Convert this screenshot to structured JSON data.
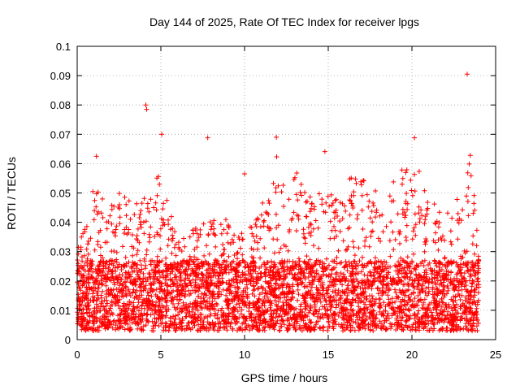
{
  "chart_data": {
    "type": "scatter",
    "title": "Day 144 of 2025, Rate Of TEC Index for receiver lpgs",
    "xlabel": "GPS time / hours",
    "ylabel": "ROTI / TECUs",
    "xlim": [
      0,
      25
    ],
    "ylim": [
      0,
      0.1
    ],
    "xticks": [
      0,
      5,
      10,
      15,
      20,
      25
    ],
    "xtick_labels": [
      "0",
      "5",
      "10",
      "15",
      "20",
      "25"
    ],
    "yticks": [
      0,
      0.01,
      0.02,
      0.03,
      0.04,
      0.05,
      0.06,
      0.07,
      0.08,
      0.09,
      0.1
    ],
    "ytick_labels": [
      "0",
      "0.01",
      "0.02",
      "0.03",
      "0.04",
      "0.05",
      "0.06",
      "0.07",
      "0.08",
      "0.09",
      "0.1"
    ],
    "grid": true,
    "marker": "+",
    "color": "#ff0000",
    "data_x_range": [
      0,
      24
    ],
    "notable_points": [
      {
        "x": 1.15,
        "y": 0.0625
      },
      {
        "x": 4.1,
        "y": 0.08
      },
      {
        "x": 4.15,
        "y": 0.0785
      },
      {
        "x": 5.05,
        "y": 0.07
      },
      {
        "x": 7.8,
        "y": 0.0688
      },
      {
        "x": 10.0,
        "y": 0.0565
      },
      {
        "x": 11.9,
        "y": 0.069
      },
      {
        "x": 14.8,
        "y": 0.0641
      },
      {
        "x": 20.15,
        "y": 0.0688
      },
      {
        "x": 23.3,
        "y": 0.0905
      }
    ],
    "envelope": [
      {
        "x": 0,
        "y": 0.035
      },
      {
        "x": 0.5,
        "y": 0.038
      },
      {
        "x": 1.0,
        "y": 0.055
      },
      {
        "x": 1.5,
        "y": 0.048
      },
      {
        "x": 2.0,
        "y": 0.046
      },
      {
        "x": 2.5,
        "y": 0.054
      },
      {
        "x": 3.0,
        "y": 0.05
      },
      {
        "x": 3.5,
        "y": 0.047
      },
      {
        "x": 4.0,
        "y": 0.05
      },
      {
        "x": 4.5,
        "y": 0.048
      },
      {
        "x": 5.0,
        "y": 0.065
      },
      {
        "x": 5.5,
        "y": 0.046
      },
      {
        "x": 6.0,
        "y": 0.033
      },
      {
        "x": 6.5,
        "y": 0.036
      },
      {
        "x": 7.0,
        "y": 0.038
      },
      {
        "x": 7.5,
        "y": 0.04
      },
      {
        "x": 8.0,
        "y": 0.043
      },
      {
        "x": 8.5,
        "y": 0.039
      },
      {
        "x": 9.0,
        "y": 0.043
      },
      {
        "x": 9.5,
        "y": 0.034
      },
      {
        "x": 10.0,
        "y": 0.04
      },
      {
        "x": 10.5,
        "y": 0.04
      },
      {
        "x": 11.0,
        "y": 0.05
      },
      {
        "x": 11.5,
        "y": 0.05
      },
      {
        "x": 12.0,
        "y": 0.065
      },
      {
        "x": 12.5,
        "y": 0.05
      },
      {
        "x": 13.0,
        "y": 0.058
      },
      {
        "x": 13.5,
        "y": 0.055
      },
      {
        "x": 14.0,
        "y": 0.05
      },
      {
        "x": 14.5,
        "y": 0.05
      },
      {
        "x": 15.0,
        "y": 0.052
      },
      {
        "x": 15.5,
        "y": 0.048
      },
      {
        "x": 16.0,
        "y": 0.055
      },
      {
        "x": 16.5,
        "y": 0.058
      },
      {
        "x": 17.0,
        "y": 0.055
      },
      {
        "x": 17.5,
        "y": 0.052
      },
      {
        "x": 18.0,
        "y": 0.05
      },
      {
        "x": 18.5,
        "y": 0.055
      },
      {
        "x": 19.0,
        "y": 0.06
      },
      {
        "x": 19.5,
        "y": 0.058
      },
      {
        "x": 20.0,
        "y": 0.06
      },
      {
        "x": 20.5,
        "y": 0.058
      },
      {
        "x": 21.0,
        "y": 0.05
      },
      {
        "x": 21.5,
        "y": 0.045
      },
      {
        "x": 22.0,
        "y": 0.042
      },
      {
        "x": 22.5,
        "y": 0.05
      },
      {
        "x": 23.0,
        "y": 0.045
      },
      {
        "x": 23.5,
        "y": 0.065
      },
      {
        "x": 24.0,
        "y": 0.03
      }
    ]
  }
}
